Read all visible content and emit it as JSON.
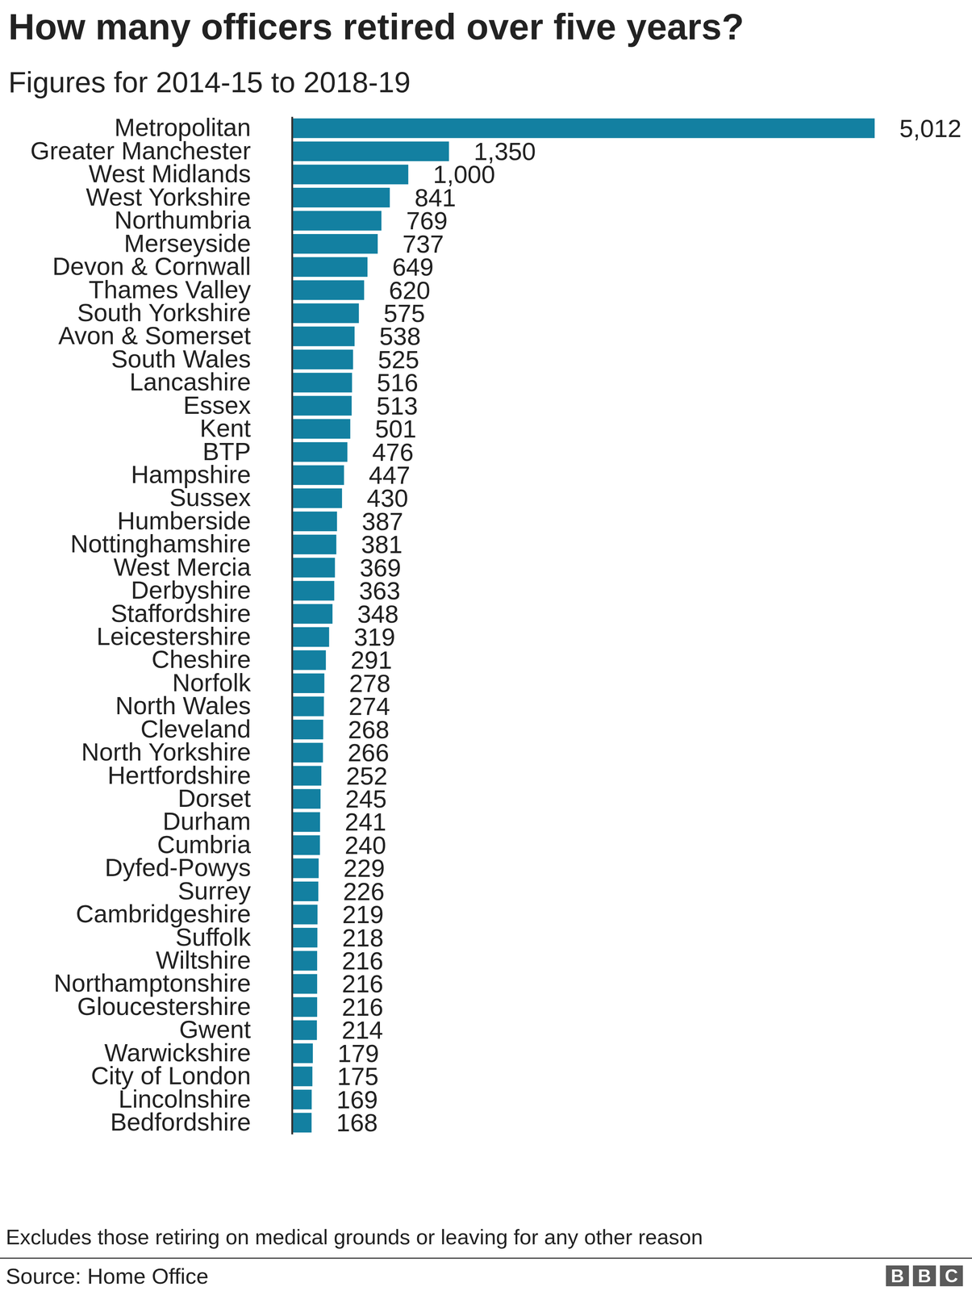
{
  "chart_data": {
    "type": "bar",
    "orientation": "horizontal",
    "title": "How many officers retired over five years?",
    "subtitle": "Figures for 2014-15 to 2018-19",
    "note": "Excludes those retiring on medical grounds or leaving for any other reason",
    "source": "Source: Home Office",
    "logo": "BBC",
    "categories": [
      "Metropolitan",
      "Greater Manchester",
      "West Midlands",
      "West Yorkshire",
      "Northumbria",
      "Merseyside",
      "Devon & Cornwall",
      "Thames Valley",
      "South Yorkshire",
      "Avon & Somerset",
      "South Wales",
      "Lancashire",
      "Essex",
      "Kent",
      "BTP",
      "Hampshire",
      "Sussex",
      "Humberside",
      "Nottinghamshire",
      "West Mercia",
      "Derbyshire",
      "Staffordshire",
      "Leicestershire",
      "Cheshire",
      "Norfolk",
      "North Wales",
      "Cleveland",
      "North Yorkshire",
      "Hertfordshire",
      "Dorset",
      "Durham",
      "Cumbria",
      "Dyfed-Powys",
      "Surrey",
      "Cambridgeshire",
      "Suffolk",
      "Wiltshire",
      "Northamptonshire",
      "Gloucestershire",
      "Gwent",
      "Warwickshire",
      "City of London",
      "Lincolnshire",
      "Bedfordshire"
    ],
    "values": [
      5012,
      1350,
      1000,
      841,
      769,
      737,
      649,
      620,
      575,
      538,
      525,
      516,
      513,
      501,
      476,
      447,
      430,
      387,
      381,
      369,
      363,
      348,
      319,
      291,
      278,
      274,
      268,
      266,
      252,
      245,
      241,
      240,
      229,
      226,
      219,
      218,
      216,
      216,
      216,
      214,
      179,
      175,
      169,
      168
    ],
    "value_labels": [
      "5,012",
      "1,350",
      "1,000",
      "841",
      "769",
      "737",
      "649",
      "620",
      "575",
      "538",
      "525",
      "516",
      "513",
      "501",
      "476",
      "447",
      "430",
      "387",
      "381",
      "369",
      "363",
      "348",
      "319",
      "291",
      "278",
      "274",
      "268",
      "266",
      "252",
      "245",
      "241",
      "240",
      "229",
      "226",
      "219",
      "218",
      "216",
      "216",
      "216",
      "214",
      "179",
      "175",
      "169",
      "168"
    ],
    "color": "#1380a1",
    "xlim": [
      0,
      5012
    ],
    "data_labels": true,
    "tick_labels": "y"
  }
}
